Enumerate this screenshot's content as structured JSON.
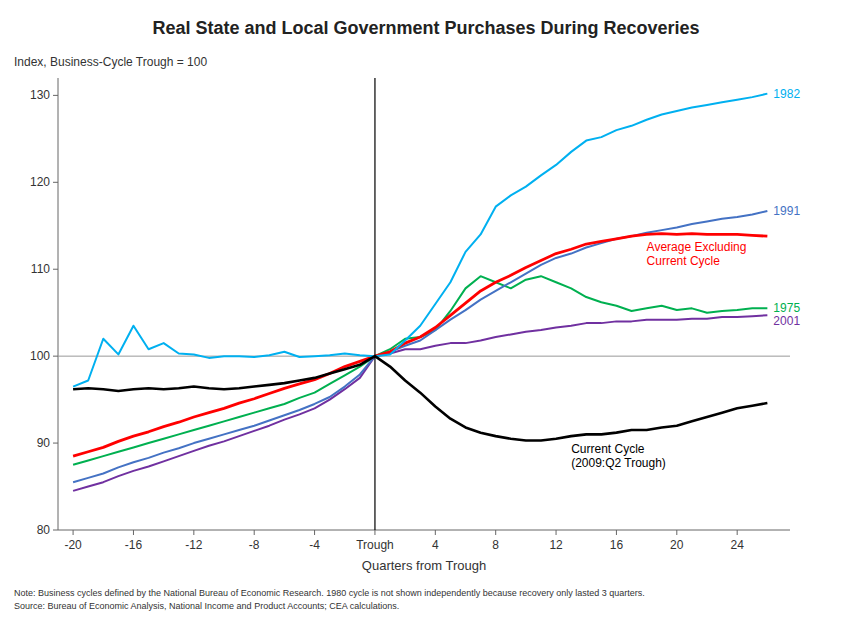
{
  "chart_data": {
    "type": "line",
    "title": "Real State and Local Government Purchases During Recoveries",
    "y_label": "Index, Business-Cycle Trough = 100",
    "x_label": "Quarters from Trough",
    "notes": [
      "Note: Business cycles defined by the National Bureau of Economic Research. 1980 cycle is not shown independently because recovery only lasted 3 quarters.",
      "Source: Bureau of Economic Analysis, National Income and Product Accounts; CEA calculations."
    ],
    "xlim": [
      -21,
      27.5
    ],
    "ylim": [
      80,
      132
    ],
    "yticks": [
      80,
      90,
      100,
      110,
      120,
      130
    ],
    "xticks": [
      -20,
      -16,
      -12,
      -8,
      -4,
      {
        "value": 0,
        "label": "Trough"
      },
      4,
      8,
      12,
      16,
      20,
      24
    ],
    "grid": false,
    "vline": 0,
    "hline": 100,
    "x": [
      -20,
      -19,
      -18,
      -17,
      -16,
      -15,
      -14,
      -13,
      -12,
      -11,
      -10,
      -9,
      -8,
      -7,
      -6,
      -5,
      -4,
      -3,
      -2,
      -1,
      0,
      1,
      2,
      3,
      4,
      5,
      6,
      7,
      8,
      9,
      10,
      11,
      12,
      13,
      14,
      15,
      16,
      17,
      18,
      19,
      20,
      21,
      22,
      23,
      24,
      25,
      26
    ],
    "series": [
      {
        "name": "1975",
        "color": "#00B050",
        "values": [
          87.5,
          88.0,
          88.5,
          89.0,
          89.5,
          90.0,
          90.5,
          91.0,
          91.5,
          92.0,
          92.5,
          93.0,
          93.5,
          94.0,
          94.5,
          95.2,
          95.8,
          96.8,
          97.8,
          98.8,
          100.0,
          100.8,
          102.0,
          102.2,
          103.0,
          105.2,
          107.8,
          109.2,
          108.5,
          107.8,
          108.8,
          109.2,
          108.5,
          107.8,
          106.8,
          106.2,
          105.8,
          105.2,
          105.5,
          105.8,
          105.3,
          105.5,
          105.0,
          105.2,
          105.3,
          105.5,
          105.5
        ]
      },
      {
        "name": "2001",
        "color": "#7030A0",
        "values": [
          84.5,
          85.0,
          85.5,
          86.2,
          86.8,
          87.3,
          87.9,
          88.5,
          89.1,
          89.7,
          90.2,
          90.8,
          91.4,
          92.0,
          92.7,
          93.3,
          94.0,
          95.0,
          96.2,
          97.5,
          100.0,
          100.3,
          100.8,
          100.8,
          101.2,
          101.5,
          101.5,
          101.8,
          102.2,
          102.5,
          102.8,
          103.0,
          103.3,
          103.5,
          103.8,
          103.8,
          104.0,
          104.0,
          104.2,
          104.2,
          104.2,
          104.3,
          104.3,
          104.5,
          104.5,
          104.6,
          104.7
        ]
      },
      {
        "name": "1991",
        "color": "#4472C4",
        "values": [
          85.5,
          86.0,
          86.5,
          87.2,
          87.8,
          88.3,
          88.9,
          89.4,
          90.0,
          90.5,
          91.0,
          91.5,
          92.0,
          92.6,
          93.2,
          93.8,
          94.5,
          95.3,
          96.5,
          97.9,
          100.0,
          100.5,
          101.2,
          101.8,
          103.0,
          104.2,
          105.3,
          106.5,
          107.5,
          108.5,
          109.5,
          110.5,
          111.3,
          111.8,
          112.5,
          113.0,
          113.5,
          113.8,
          114.2,
          114.5,
          114.8,
          115.2,
          115.5,
          115.8,
          116.0,
          116.3,
          116.7
        ]
      },
      {
        "name": "Average Excluding\nCurrent Cycle",
        "color": "#FF0000",
        "values": [
          88.5,
          89.0,
          89.5,
          90.2,
          90.8,
          91.3,
          91.9,
          92.4,
          93.0,
          93.5,
          94.0,
          94.6,
          95.1,
          95.7,
          96.3,
          96.8,
          97.3,
          98.0,
          98.8,
          99.4,
          100.0,
          100.5,
          101.5,
          102.2,
          103.3,
          104.7,
          106.1,
          107.5,
          108.5,
          109.3,
          110.2,
          111.0,
          111.8,
          112.3,
          112.9,
          113.2,
          113.5,
          113.8,
          114.0,
          114.1,
          114.0,
          114.1,
          114.0,
          114.0,
          114.0,
          113.9,
          113.8
        ]
      },
      {
        "name": "1982",
        "color": "#00B0F0",
        "values": [
          96.5,
          97.2,
          102.0,
          100.2,
          103.5,
          100.8,
          101.5,
          100.3,
          100.2,
          99.8,
          100.0,
          100.0,
          99.9,
          100.1,
          100.5,
          99.9,
          100.0,
          100.1,
          100.3,
          100.1,
          100.0,
          100.2,
          101.8,
          103.5,
          106.0,
          108.5,
          112.0,
          114.0,
          117.2,
          118.5,
          119.5,
          120.8,
          122.0,
          123.5,
          124.8,
          125.2,
          126.0,
          126.5,
          127.2,
          127.8,
          128.2,
          128.6,
          128.9,
          129.2,
          129.5,
          129.8,
          130.2
        ]
      },
      {
        "name": "Current Cycle\n(2009:Q2 Trough)",
        "color": "#000000",
        "values": [
          96.2,
          96.3,
          96.2,
          96.0,
          96.2,
          96.3,
          96.2,
          96.3,
          96.5,
          96.3,
          96.2,
          96.3,
          96.5,
          96.7,
          96.9,
          97.2,
          97.5,
          98.0,
          98.5,
          99.0,
          100.0,
          98.8,
          97.2,
          95.8,
          94.2,
          92.8,
          91.8,
          91.2,
          90.8,
          90.5,
          90.3,
          90.3,
          90.5,
          90.8,
          91.0,
          91.0,
          91.2,
          91.5,
          91.5,
          91.8,
          92.0,
          92.5,
          93.0,
          93.5,
          94.0,
          94.3,
          94.6
        ]
      }
    ]
  }
}
